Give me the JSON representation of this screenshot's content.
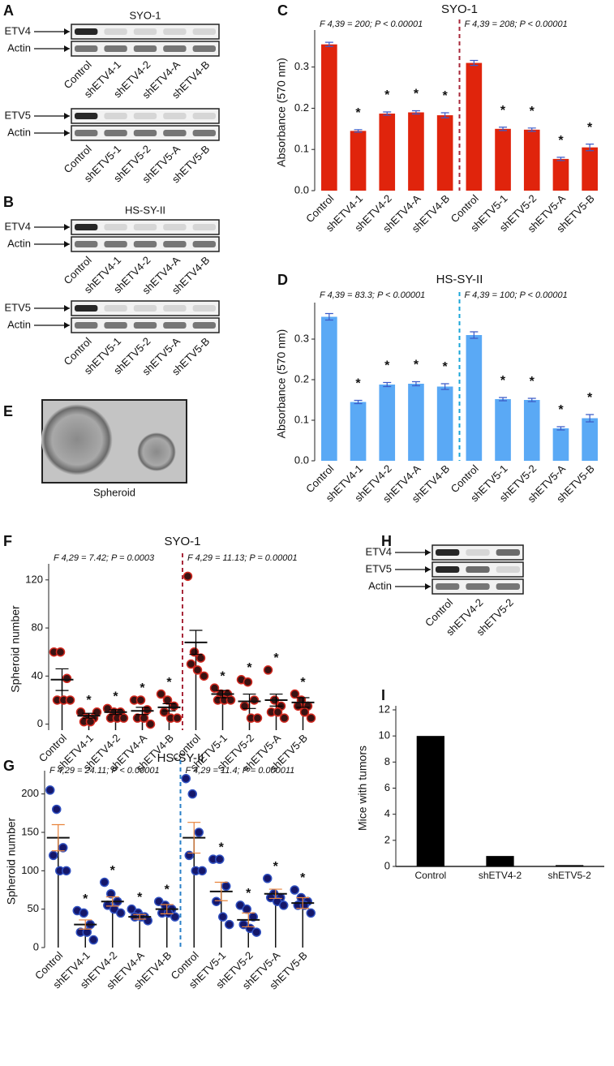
{
  "panel_labels": [
    "A",
    "B",
    "C",
    "D",
    "E",
    "F",
    "G",
    "H",
    "I"
  ],
  "blots": [
    {
      "title": "SYO-1",
      "groups": [
        {
          "rows": [
            "ETV4",
            "Actin"
          ],
          "lanes": [
            "Control",
            "shETV4-1",
            "shETV4-2",
            "shETV4-A",
            "shETV4-B"
          ]
        },
        {
          "rows": [
            "ETV5",
            "Actin"
          ],
          "lanes": [
            "Control",
            "shETV5-1",
            "shETV5-2",
            "shETV5-A",
            "shETV5-B"
          ]
        }
      ]
    },
    {
      "title": "HS-SY-II",
      "groups": [
        {
          "rows": [
            "ETV4",
            "Actin"
          ],
          "lanes": [
            "Control",
            "shETV4-1",
            "shETV4-2",
            "shETV4-A",
            "shETV4-B"
          ]
        },
        {
          "rows": [
            "ETV5",
            "Actin"
          ],
          "lanes": [
            "Control",
            "shETV5-1",
            "shETV5-2",
            "shETV5-A",
            "shETV5-B"
          ]
        }
      ]
    },
    {
      "groups": [
        {
          "rows": [
            "ETV4",
            "ETV5",
            "Actin"
          ],
          "lanes": [
            "Control",
            "shETV4-2",
            "shETV5-2"
          ]
        }
      ]
    }
  ],
  "spheroid": {
    "caption": "Spheroid"
  },
  "chart_data": [
    {
      "type": "bar",
      "title": "SYO-1",
      "ylabel": "Absorbance (570 nm)",
      "categories": [
        "Control",
        "shETV4-1",
        "shETV4-2",
        "shETV4-A",
        "shETV4-B",
        "Control",
        "shETV5-1",
        "shETV5-2",
        "shETV5-A",
        "shETV5-B"
      ],
      "values": [
        0.355,
        0.145,
        0.187,
        0.19,
        0.183,
        0.31,
        0.15,
        0.148,
        0.077,
        0.105
      ],
      "errors": [
        0.005,
        0.003,
        0.004,
        0.004,
        0.006,
        0.006,
        0.004,
        0.004,
        0.004,
        0.008
      ],
      "markers": [
        null,
        "*",
        "*",
        "*",
        "*",
        null,
        "*",
        "*",
        "*",
        "*"
      ],
      "annotations": [
        "F 4,39 = 200; P < 0.00001",
        "F 4,39 = 208; P < 0.00001"
      ],
      "color": "#e0240c",
      "error_color": "#3b5bc8",
      "divider_color": "#a8283a",
      "ylim": [
        0,
        0.38
      ],
      "yticks": [
        {
          "value": 0,
          "label": "0.0"
        },
        0.1,
        0.2,
        0.3
      ]
    },
    {
      "type": "bar",
      "title": "HS-SY-II",
      "ylabel": "Absorbance (570 nm)",
      "categories": [
        "Control",
        "shETV4-1",
        "shETV4-2",
        "shETV4-A",
        "shETV4-B",
        "Control",
        "shETV5-1",
        "shETV5-2",
        "shETV5-A",
        "shETV5-B"
      ],
      "values": [
        0.355,
        0.145,
        0.188,
        0.19,
        0.183,
        0.31,
        0.152,
        0.15,
        0.08,
        0.105
      ],
      "errors": [
        0.008,
        0.004,
        0.005,
        0.005,
        0.007,
        0.008,
        0.004,
        0.004,
        0.004,
        0.009
      ],
      "markers": [
        null,
        "*",
        "*",
        "*",
        "*",
        null,
        "*",
        "*",
        "*",
        "*"
      ],
      "annotations": [
        "F 4,39 = 83.3; P < 0.00001",
        "F 4,39 = 100; P < 0.00001"
      ],
      "color": "#5aa9f5",
      "error_color": "#3b5bc8",
      "divider_color": "#1aa6d8",
      "ylim": [
        0,
        0.38
      ],
      "yticks": [
        {
          "value": 0,
          "label": "0.0"
        },
        0.1,
        0.2,
        0.3
      ]
    },
    {
      "type": "dot",
      "title": "SYO-1",
      "ylabel": "Spheroid number",
      "categories": [
        "Control",
        "shETV4-1",
        "shETV4-2",
        "shETV4-A",
        "shETV4-B",
        "Control",
        "shETV5-1",
        "shETV5-2",
        "shETV5-A",
        "shETV5-B"
      ],
      "points": [
        [
          60,
          60,
          38,
          20,
          20,
          20
        ],
        [
          10,
          5,
          5,
          2,
          2,
          10
        ],
        [
          13,
          10,
          10,
          5,
          5,
          5
        ],
        [
          20,
          20,
          12,
          5,
          5,
          0
        ],
        [
          25,
          20,
          15,
          10,
          5,
          5
        ],
        [
          123,
          60,
          55,
          50,
          45,
          40
        ],
        [
          30,
          25,
          25,
          20,
          20,
          20
        ],
        [
          37,
          35,
          20,
          15,
          5,
          5
        ],
        [
          45,
          20,
          15,
          10,
          10,
          5
        ],
        [
          25,
          20,
          15,
          15,
          10,
          5
        ]
      ],
      "means": [
        37,
        7,
        10,
        11,
        14,
        68,
        25,
        19,
        20,
        18
      ],
      "errors": [
        9,
        2,
        2,
        3,
        3,
        10,
        3,
        6,
        5,
        4
      ],
      "markers": [
        null,
        "*",
        "*",
        "*",
        "*",
        null,
        "*",
        "*",
        "*",
        "*"
      ],
      "annotations": [
        "F 4,29 = 7.42; P = 0.0003",
        "F 4,29 = 11.13; P = 0.00001"
      ],
      "color": "#3a1212",
      "edge_color": "#d42a20",
      "error_color": "#000000",
      "divider_color": "#a8283a",
      "ylim": [
        -5,
        130
      ],
      "yticks": [
        0,
        40,
        80,
        120
      ]
    },
    {
      "type": "dot",
      "title": "HS-SY-II",
      "ylabel": "Spheroid number",
      "categories": [
        "Control",
        "shETV4-1",
        "shETV4-2",
        "shETV4-A",
        "shETV4-B",
        "Control",
        "shETV5-1",
        "shETV5-2",
        "shETV5-A",
        "shETV5-B"
      ],
      "points": [
        [
          205,
          180,
          130,
          120,
          100,
          100
        ],
        [
          48,
          45,
          30,
          20,
          20,
          10
        ],
        [
          85,
          70,
          60,
          55,
          50,
          45
        ],
        [
          50,
          45,
          40,
          40,
          40,
          35
        ],
        [
          60,
          55,
          50,
          45,
          45,
          40
        ],
        [
          220,
          200,
          150,
          120,
          100,
          100
        ],
        [
          115,
          115,
          80,
          60,
          40,
          30
        ],
        [
          55,
          50,
          40,
          30,
          25,
          20
        ],
        [
          90,
          70,
          65,
          65,
          60,
          55
        ],
        [
          75,
          65,
          60,
          55,
          55,
          45
        ]
      ],
      "means": [
        143,
        30,
        60,
        40,
        50,
        143,
        73,
        36,
        70,
        58
      ],
      "errors": [
        17,
        6,
        6,
        3,
        6,
        20,
        12,
        9,
        6,
        7
      ],
      "markers": [
        null,
        "*",
        "*",
        "*",
        "*",
        null,
        "*",
        "*",
        "*",
        "*"
      ],
      "annotations": [
        "F 4,29 = 24.11; P < 0.00001",
        "F 4,29 = 11.4; P = 0.000011"
      ],
      "color": "#15176a",
      "edge_color": "#3050c0",
      "error_color": "#e8823a",
      "divider_color": "#2a80c8",
      "ylim": [
        0,
        225
      ],
      "yticks": [
        0,
        50,
        100,
        150,
        200
      ]
    },
    {
      "type": "bar",
      "ylabel": "Mice with tumors",
      "categories": [
        "Control",
        "shETV4-2",
        "shETV5-2"
      ],
      "values": [
        10,
        0.8,
        0.1
      ],
      "color": "#000000",
      "ylim": [
        0,
        12
      ],
      "yticks": [
        0,
        2,
        4,
        6,
        8,
        10,
        12
      ]
    }
  ]
}
